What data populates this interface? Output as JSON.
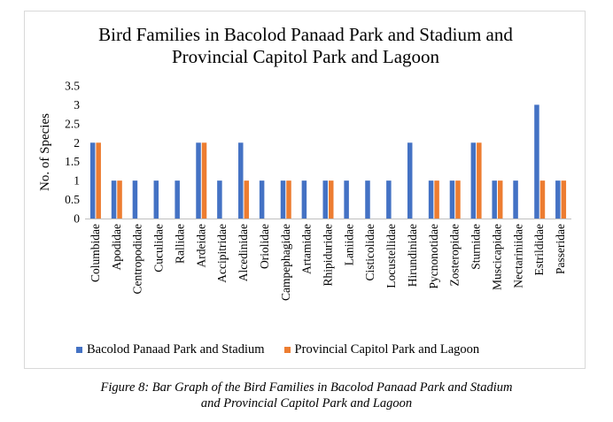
{
  "chart_data": {
    "type": "bar",
    "title_line1": "Bird Families in Bacolod Panaad Park and Stadium and",
    "title_line2": "Provincial Capitol Park and Lagoon",
    "ylabel": "No. of Species",
    "xlabel": "",
    "ylim": [
      0,
      3.5
    ],
    "yticks": [
      "0",
      "0.5",
      "1",
      "1.5",
      "2",
      "2.5",
      "3",
      "3.5"
    ],
    "grid": false,
    "legend_position": "bottom",
    "categories": [
      "Columbidae",
      "Apodidae",
      "Centropodidae",
      "Cuculidae",
      "Rallidae",
      "Ardeidae",
      "Accipitridae",
      "Alcedinidae",
      "Oriolidae",
      "Campephagidae",
      "Artamidae",
      "Rhipiduridae",
      "Laniidae",
      "Cisticolidae",
      "Locustellidae",
      "Hirundinidae",
      "Pycnonotidae",
      "Zosteropidae",
      "Sturnidae",
      "Muscicapidae",
      "Nectariniidae",
      "Estrildidae",
      "Passeridae"
    ],
    "series": [
      {
        "name": "Bacolod Panaad Park and Stadium",
        "color": "#4472c4",
        "values": [
          2,
          1,
          1,
          1,
          1,
          2,
          1,
          2,
          1,
          1,
          1,
          1,
          1,
          1,
          1,
          2,
          1,
          1,
          2,
          1,
          1,
          3,
          1
        ]
      },
      {
        "name": "Provincial Capitol Park and Lagoon",
        "color": "#ed7d31",
        "values": [
          2,
          1,
          0,
          0,
          0,
          2,
          0,
          1,
          0,
          1,
          0,
          1,
          0,
          0,
          0,
          0,
          1,
          1,
          2,
          1,
          0,
          1,
          1
        ]
      }
    ]
  },
  "caption_line1": "Figure 8: Bar Graph of the Bird Families in Bacolod Panaad Park and Stadium",
  "caption_line2": "and Provincial Capitol Park and Lagoon"
}
